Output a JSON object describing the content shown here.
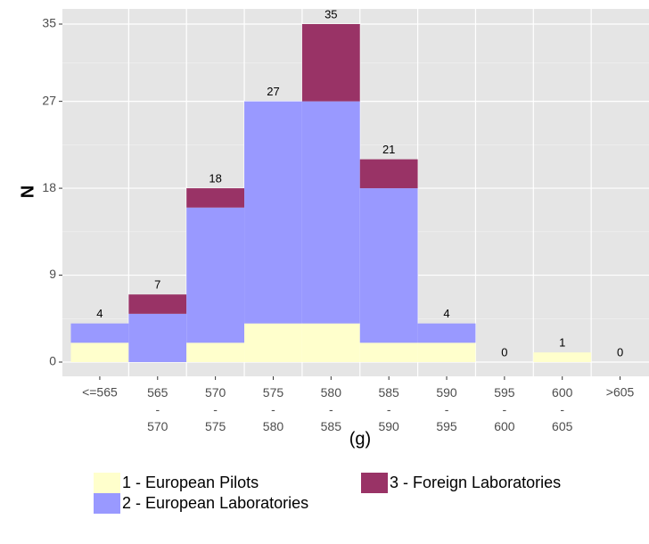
{
  "chart_data": {
    "type": "stacked_bar",
    "xlabel": "(g)",
    "ylabel": "N",
    "categories": [
      "<=565",
      "565\n-\n570",
      "570\n-\n575",
      "575\n-\n580",
      "580\n-\n585",
      "585\n-\n590",
      "590\n-\n595",
      "595\n-\n600",
      "600\n-\n605",
      ">605"
    ],
    "series": [
      {
        "name": "1 - European Pilots",
        "color": "#ffffcc",
        "values": [
          2,
          0,
          2,
          4,
          4,
          2,
          2,
          0,
          1,
          0
        ]
      },
      {
        "name": "2 - European Laboratories",
        "color": "#9999ff",
        "values": [
          2,
          5,
          14,
          23,
          23,
          16,
          2,
          0,
          0,
          0
        ]
      },
      {
        "name": "3 - Foreign Laboratories",
        "color": "#993366",
        "values": [
          0,
          2,
          2,
          0,
          8,
          3,
          0,
          0,
          0,
          0
        ]
      }
    ],
    "totals": [
      4,
      7,
      18,
      27,
      35,
      21,
      4,
      0,
      1,
      0
    ],
    "ylim": [
      0,
      35
    ],
    "yticks": [
      0,
      9,
      18,
      27,
      35
    ],
    "grid": true
  }
}
